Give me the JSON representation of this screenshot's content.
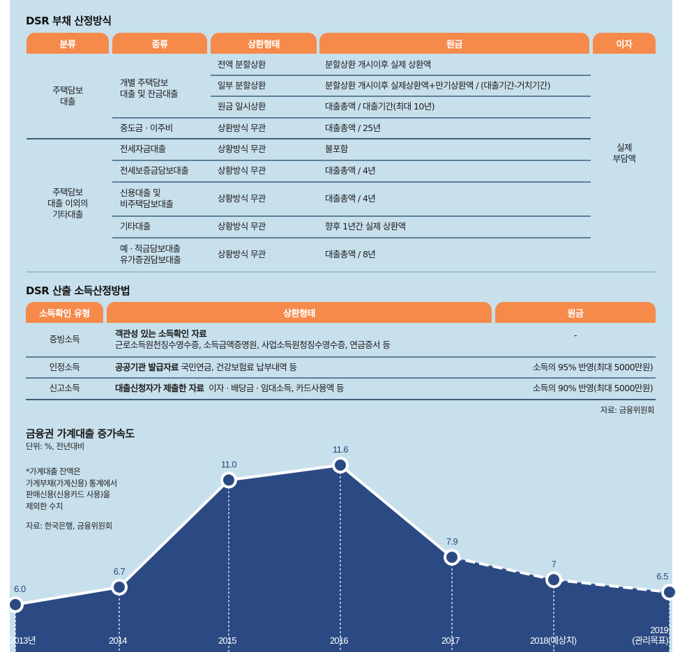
{
  "debt_table": {
    "title": "DSR 부채 산정방식",
    "headers": [
      "분류",
      "종류",
      "상환형태",
      "원금",
      "이자"
    ],
    "groups": [
      {
        "category": "주택담보\n대출",
        "rows": [
          {
            "type": "개별 주택담보\n대출 및 잔금대출",
            "repayment": "전액 분할상환",
            "principal": "분할상환 개시이후 실제 상환액"
          },
          {
            "type": "",
            "repayment": "일부 분할상환",
            "principal": "분할상환 개시이후 실제상환액+만기상환액 / (대출기간-거치기간)"
          },
          {
            "type": "",
            "repayment": "원금 일시상환",
            "principal": "대출총액 / 대출기간(최대 10년)"
          },
          {
            "type": "중도금 · 이주비",
            "repayment": "상환방식 무관",
            "principal": "대출총액 / 25년"
          }
        ]
      },
      {
        "category": "주택담보\n대출 이외의\n기타대출",
        "rows": [
          {
            "type": "전세자금대출",
            "repayment": "상황방식 무관",
            "principal": "불포함"
          },
          {
            "type": "전세보증금담보대출",
            "repayment": "상황방식 무관",
            "principal": "대출총액 / 4년"
          },
          {
            "type": "신용대출 및\n비주택담보대출",
            "repayment": "상황방식 무관",
            "principal": "대출총액 / 4년"
          },
          {
            "type": "기타대출",
            "repayment": "상황방식 무관",
            "principal": "향후 1년간 실제 상환액"
          },
          {
            "type": "예 · 적금담보대출\n유가증권담보대출",
            "repayment": "상황방식 무관",
            "principal": "대출총액 / 8년"
          }
        ]
      }
    ],
    "interest": "실제\n부담액"
  },
  "income_table": {
    "title": "DSR 산출 소득산정방법",
    "headers": [
      "소득확인 유형",
      "상환형태",
      "원금"
    ],
    "rows": [
      {
        "type": "증빙소득",
        "desc_bold": "객관성 있는 소득확인 자료",
        "desc": "근로소득원천징수영수증, 소득금액증명원, 사업소득원청징수영수증, 연금증서 등",
        "principal": "-"
      },
      {
        "type": "인정소득",
        "desc_bold": "공공기관 발급자료",
        "desc": " 국민연금, 건강보험료 납부내역 등",
        "principal": "소득의 95% 반영(최대 5000만원)"
      },
      {
        "type": "신고소득",
        "desc_bold": "대출신청자가 제출한 자료",
        "desc": "  이자 · 배당금 · 임대소득, 카드사용액 등",
        "principal": "소득의 90% 반영(최대 5000만원)"
      }
    ],
    "source": "자료: 금융위원회"
  },
  "chart_section": {
    "title": "금융권 가계대출 증가속도",
    "unit": "단위: %, 전년대비",
    "note": [
      "*가계대출 잔액은",
      "가계부채(가계신용) 통계에서",
      "판매신용(신용카드 사용)을",
      "제외한 수치"
    ],
    "source": "자료: 한국은행, 금융위원회"
  },
  "chart_data": {
    "type": "area",
    "title": "금융권 가계대출 증가속도",
    "subtitle": "단위: %, 전년대비",
    "categories": [
      "2013년",
      "2014",
      "2015",
      "2016",
      "2017",
      "2018(예상치)",
      "2019\n(관리목표)"
    ],
    "values": [
      6.0,
      6.7,
      11.0,
      11.6,
      7.9,
      7,
      6.5
    ],
    "value_labels": [
      "6.0",
      "6.7",
      "11.0",
      "11.6",
      "7.9",
      "7",
      "6.5"
    ],
    "dashed_from_index": 4,
    "xlabel": "",
    "ylabel": "",
    "grid": false,
    "annotations": [
      "*가계대출 잔액은 가계부채(가계신용) 통계에서 판매신용(신용카드 사용)을 제외한 수치",
      "자료: 한국은행, 금융위원회"
    ],
    "colors": {
      "fill": "#2b4a83",
      "line": "#ffffff",
      "background": "#c8e0ec"
    }
  },
  "colors": {
    "header_orange": "#f58a4b",
    "panel_bg": "#c8e0ec",
    "navy": "#2b4a83"
  }
}
